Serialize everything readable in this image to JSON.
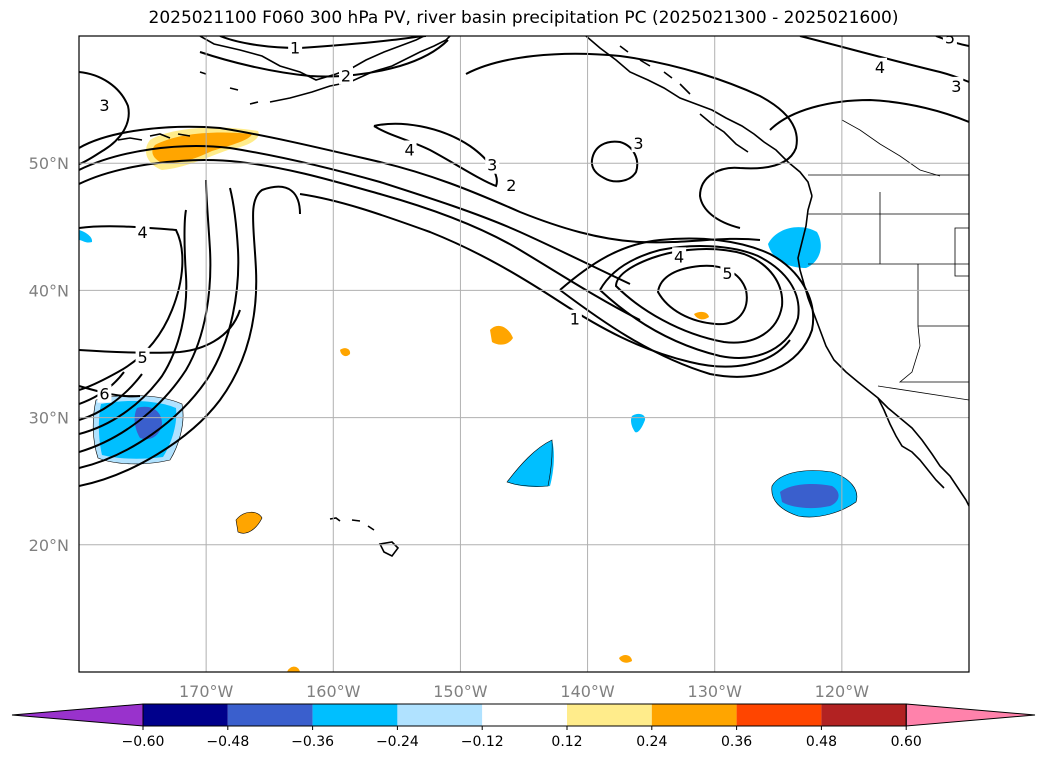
{
  "title": "2025021100 F060 300 hPa PV, river basin precipitation PC (2025021300 - 2025021600)",
  "map": {
    "projection": "PlateCarree",
    "lon_range": [
      -180,
      -110
    ],
    "lat_range": [
      10,
      60
    ],
    "gridlines": true,
    "lat_ticks": [
      {
        "value": 20,
        "label": "20°N"
      },
      {
        "value": 30,
        "label": "30°N"
      },
      {
        "value": 40,
        "label": "40°N"
      },
      {
        "value": 50,
        "label": "50°N"
      }
    ],
    "lon_ticks": [
      {
        "value": -170,
        "label": "170°W"
      },
      {
        "value": -160,
        "label": "160°W"
      },
      {
        "value": -150,
        "label": "150°W"
      },
      {
        "value": -140,
        "label": "140°W"
      },
      {
        "value": -130,
        "label": "130°W"
      },
      {
        "value": -120,
        "label": "120°W"
      }
    ],
    "contour_labels": [
      {
        "text": "1",
        "lon": -163,
        "lat": 59
      },
      {
        "text": "2",
        "lon": -159,
        "lat": 56.8
      },
      {
        "text": "3",
        "lon": -178,
        "lat": 54.5
      },
      {
        "text": "4",
        "lon": -154,
        "lat": 51
      },
      {
        "text": "3",
        "lon": -147.5,
        "lat": 49.8
      },
      {
        "text": "2",
        "lon": -146,
        "lat": 48.2
      },
      {
        "text": "3",
        "lon": -136,
        "lat": 51.5
      },
      {
        "text": "4",
        "lon": -175,
        "lat": 44.5
      },
      {
        "text": "4",
        "lon": -132.8,
        "lat": 42.6
      },
      {
        "text": "5",
        "lon": -129,
        "lat": 41.3
      },
      {
        "text": "1",
        "lon": -141,
        "lat": 37.7
      },
      {
        "text": "5",
        "lon": -175,
        "lat": 34.7
      },
      {
        "text": "6",
        "lon": -178,
        "lat": 31.8
      },
      {
        "text": "4",
        "lon": -117,
        "lat": 57.5
      },
      {
        "text": "3",
        "lon": -111,
        "lat": 56
      },
      {
        "text": "5",
        "lon": -111.5,
        "lat": 59.8
      }
    ],
    "colors": {
      "contour": "#000000",
      "grid": "#b0b0b0"
    }
  },
  "colorbar": {
    "ticks": [
      "−0.60",
      "−0.48",
      "−0.36",
      "−0.24",
      "−0.12",
      "0.12",
      "0.24",
      "0.36",
      "0.48",
      "0.60"
    ],
    "colors": [
      "#9932cc",
      "#00008b",
      "#3a5fcd",
      "#00bfff",
      "#b0e2ff",
      "#ffffff",
      "#ffec8b",
      "#ffa500",
      "#ff4500",
      "#b22222",
      "#ff82ab"
    ]
  }
}
